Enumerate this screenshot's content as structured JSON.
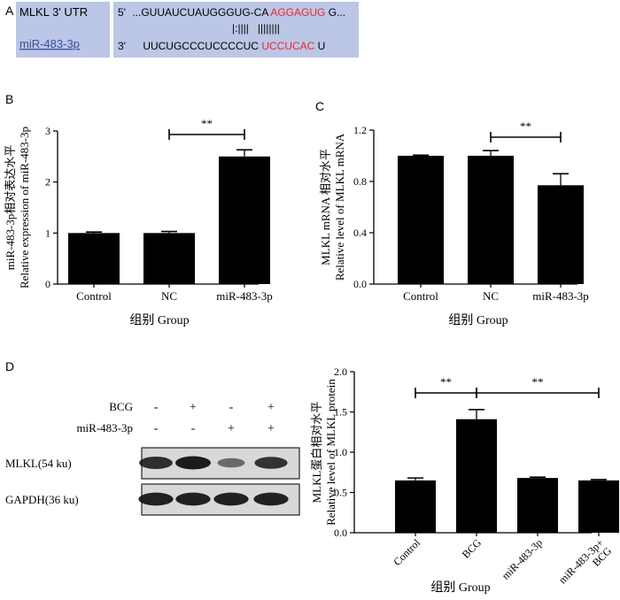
{
  "panels": {
    "a": "A",
    "b": "B",
    "c": "C",
    "d": "D"
  },
  "seq": {
    "gene_label": "MLKL 3' UTR",
    "mir_label": "miR-483-3p",
    "utr_prime": "5'",
    "utr_black": "...GUUAUCUAUGGGUG-CA",
    "utr_red": "AGGAGUG",
    "utr_tail": "G...",
    "pairing": "|:||||   ||||||||",
    "mir_prime": "3'",
    "mir_black": "UUCUGCCCUCCCCUC",
    "mir_red": "UCCUCAC",
    "mir_tail": "U",
    "colors": {
      "box": "#bcc6e6",
      "red": "#e8282d",
      "link": "#3a4fa0"
    }
  },
  "chart_data": [
    {
      "type": "bar",
      "categories": [
        "Control",
        "NC",
        "miR-483-3p"
      ],
      "values": [
        1.0,
        1.0,
        2.5
      ],
      "errors": [
        0.02,
        0.03,
        0.13
      ],
      "xlabel": "组别 Group",
      "ylabel_cn": "miR-483-3p相对表达水平",
      "ylabel_en": "Relative expression of miR-483-3p",
      "ylim": [
        0,
        3
      ],
      "yticks": [
        "0",
        "1",
        "2",
        "3"
      ],
      "significance": {
        "from": 1,
        "to": 2,
        "label": "**"
      }
    },
    {
      "type": "bar",
      "categories": [
        "Control",
        "NC",
        "miR-483-3p"
      ],
      "values": [
        1.0,
        1.0,
        0.77
      ],
      "errors": [
        0.005,
        0.04,
        0.09
      ],
      "xlabel": "组别 Group",
      "ylabel_cn": "MLKL mRNA 相对水平",
      "ylabel_en": "Relative level of MLKL mRNA",
      "ylim": [
        0,
        1.2
      ],
      "yticks": [
        "0.0",
        "0.4",
        "0.8",
        "1.2"
      ],
      "significance": {
        "from": 1,
        "to": 2,
        "label": "**"
      }
    },
    {
      "type": "bar",
      "categories": [
        "Control",
        "BCG",
        "miR-483-3p",
        "miR-483-3p+ BCG"
      ],
      "values": [
        0.65,
        1.41,
        0.68,
        0.65
      ],
      "errors": [
        0.03,
        0.12,
        0.01,
        0.01
      ],
      "xlabel": "组别 Group",
      "ylabel_cn": "MLKL蛋白相对水平",
      "ylabel_en": "Relative level of MLKL protein",
      "ylim": [
        0,
        2.0
      ],
      "yticks": [
        "0.0",
        "0.5",
        "1.0",
        "1.5",
        "2.0"
      ],
      "significance": [
        {
          "from": 0,
          "to": 1,
          "label": "**"
        },
        {
          "from": 1,
          "to": 3,
          "label": "**"
        }
      ]
    }
  ],
  "blot": {
    "conditions": [
      {
        "label": "BCG",
        "signs": [
          "-",
          "+",
          "-",
          "+"
        ]
      },
      {
        "label": "miR-483-3p",
        "signs": [
          "-",
          "-",
          "+",
          "+"
        ]
      }
    ],
    "bands": [
      {
        "label": "MLKL(54 ku)",
        "intensity": [
          0.85,
          1.0,
          0.35,
          0.8
        ]
      },
      {
        "label": "GAPDH(36 ku)",
        "intensity": [
          0.95,
          0.95,
          0.95,
          0.95
        ]
      }
    ]
  }
}
